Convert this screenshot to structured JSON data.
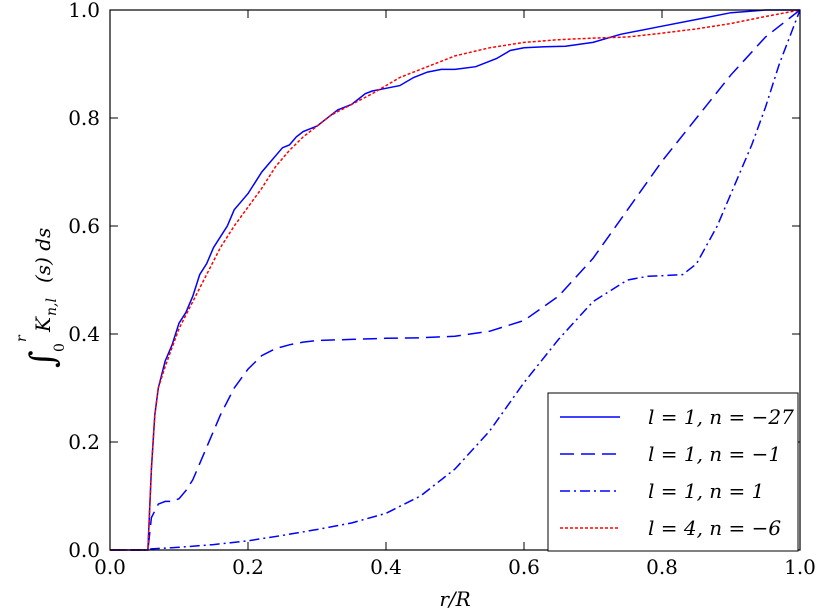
{
  "chart_data": {
    "type": "line",
    "xlabel": "r/R",
    "ylabel": "∫₀ʳ K_{n,l}(s) ds",
    "ylabel_parts": {
      "integral": "∫",
      "lower": "0",
      "upper": "r",
      "kernel": "K",
      "kernel_sub": "n,l",
      "arg": "(s) ds"
    },
    "xlim": [
      0,
      1
    ],
    "ylim": [
      0,
      1
    ],
    "x_ticks": [
      "0.0",
      "0.2",
      "0.4",
      "0.6",
      "0.8",
      "1.0"
    ],
    "y_ticks": [
      "0.0",
      "0.2",
      "0.4",
      "0.6",
      "0.8",
      "1.0"
    ],
    "grid": false,
    "legend_position": "bottom-right",
    "series": [
      {
        "name": "l = 1, n = −27",
        "color": "#0000ff",
        "dash": "solid",
        "x": [
          0,
          0.055,
          0.06,
          0.065,
          0.07,
          0.08,
          0.09,
          0.1,
          0.11,
          0.12,
          0.13,
          0.14,
          0.15,
          0.16,
          0.17,
          0.18,
          0.19,
          0.2,
          0.21,
          0.22,
          0.23,
          0.24,
          0.25,
          0.26,
          0.27,
          0.28,
          0.29,
          0.3,
          0.31,
          0.32,
          0.33,
          0.34,
          0.35,
          0.36,
          0.37,
          0.38,
          0.4,
          0.42,
          0.44,
          0.46,
          0.48,
          0.5,
          0.53,
          0.56,
          0.58,
          0.6,
          0.63,
          0.66,
          0.7,
          0.74,
          0.8,
          0.86,
          0.9,
          0.95,
          1.0
        ],
        "y": [
          0,
          0,
          0.15,
          0.25,
          0.3,
          0.35,
          0.38,
          0.42,
          0.44,
          0.47,
          0.51,
          0.53,
          0.56,
          0.58,
          0.6,
          0.63,
          0.645,
          0.66,
          0.68,
          0.7,
          0.715,
          0.73,
          0.745,
          0.75,
          0.765,
          0.775,
          0.78,
          0.785,
          0.795,
          0.805,
          0.815,
          0.82,
          0.825,
          0.835,
          0.845,
          0.85,
          0.855,
          0.86,
          0.875,
          0.885,
          0.89,
          0.89,
          0.895,
          0.91,
          0.925,
          0.93,
          0.932,
          0.933,
          0.94,
          0.955,
          0.97,
          0.985,
          0.995,
          1.0,
          1.0
        ]
      },
      {
        "name": "l = 1, n = −1",
        "color": "#0000ff",
        "dash": "long",
        "x": [
          0,
          0.055,
          0.06,
          0.07,
          0.08,
          0.09,
          0.1,
          0.11,
          0.12,
          0.14,
          0.16,
          0.18,
          0.2,
          0.22,
          0.24,
          0.26,
          0.28,
          0.3,
          0.35,
          0.4,
          0.45,
          0.5,
          0.55,
          0.6,
          0.65,
          0.7,
          0.75,
          0.8,
          0.85,
          0.9,
          0.95,
          1.0
        ],
        "y": [
          0,
          0,
          0.06,
          0.085,
          0.09,
          0.09,
          0.095,
          0.11,
          0.13,
          0.19,
          0.25,
          0.3,
          0.335,
          0.36,
          0.373,
          0.38,
          0.385,
          0.388,
          0.39,
          0.392,
          0.393,
          0.396,
          0.405,
          0.425,
          0.47,
          0.54,
          0.63,
          0.72,
          0.8,
          0.88,
          0.95,
          1.0
        ]
      },
      {
        "name": "l = 1, n = 1",
        "color": "#0000ff",
        "dash": "dashdot",
        "x": [
          0,
          0.055,
          0.06,
          0.1,
          0.15,
          0.2,
          0.25,
          0.3,
          0.35,
          0.4,
          0.45,
          0.5,
          0.55,
          0.6,
          0.65,
          0.7,
          0.75,
          0.78,
          0.8,
          0.83,
          0.85,
          0.88,
          0.9,
          0.93,
          0.95,
          0.97,
          1.0
        ],
        "y": [
          0,
          0,
          0.002,
          0.005,
          0.01,
          0.017,
          0.027,
          0.038,
          0.05,
          0.068,
          0.1,
          0.15,
          0.22,
          0.31,
          0.39,
          0.46,
          0.5,
          0.507,
          0.508,
          0.51,
          0.53,
          0.6,
          0.66,
          0.75,
          0.82,
          0.9,
          1.0
        ]
      },
      {
        "name": "l = 4, n = −6",
        "color": "#ff0000",
        "dash": "dotted",
        "x": [
          0,
          0.055,
          0.06,
          0.065,
          0.07,
          0.08,
          0.1,
          0.12,
          0.14,
          0.16,
          0.18,
          0.2,
          0.22,
          0.24,
          0.26,
          0.28,
          0.3,
          0.32,
          0.35,
          0.38,
          0.4,
          0.42,
          0.44,
          0.46,
          0.48,
          0.5,
          0.55,
          0.6,
          0.65,
          0.7,
          0.75,
          0.8,
          0.85,
          0.9,
          0.95,
          1.0
        ],
        "y": [
          0,
          0,
          0.15,
          0.25,
          0.3,
          0.34,
          0.41,
          0.46,
          0.51,
          0.56,
          0.6,
          0.635,
          0.67,
          0.71,
          0.74,
          0.765,
          0.785,
          0.805,
          0.825,
          0.845,
          0.86,
          0.875,
          0.885,
          0.895,
          0.905,
          0.915,
          0.93,
          0.94,
          0.945,
          0.948,
          0.95,
          0.957,
          0.965,
          0.975,
          0.988,
          1.0
        ]
      }
    ]
  }
}
